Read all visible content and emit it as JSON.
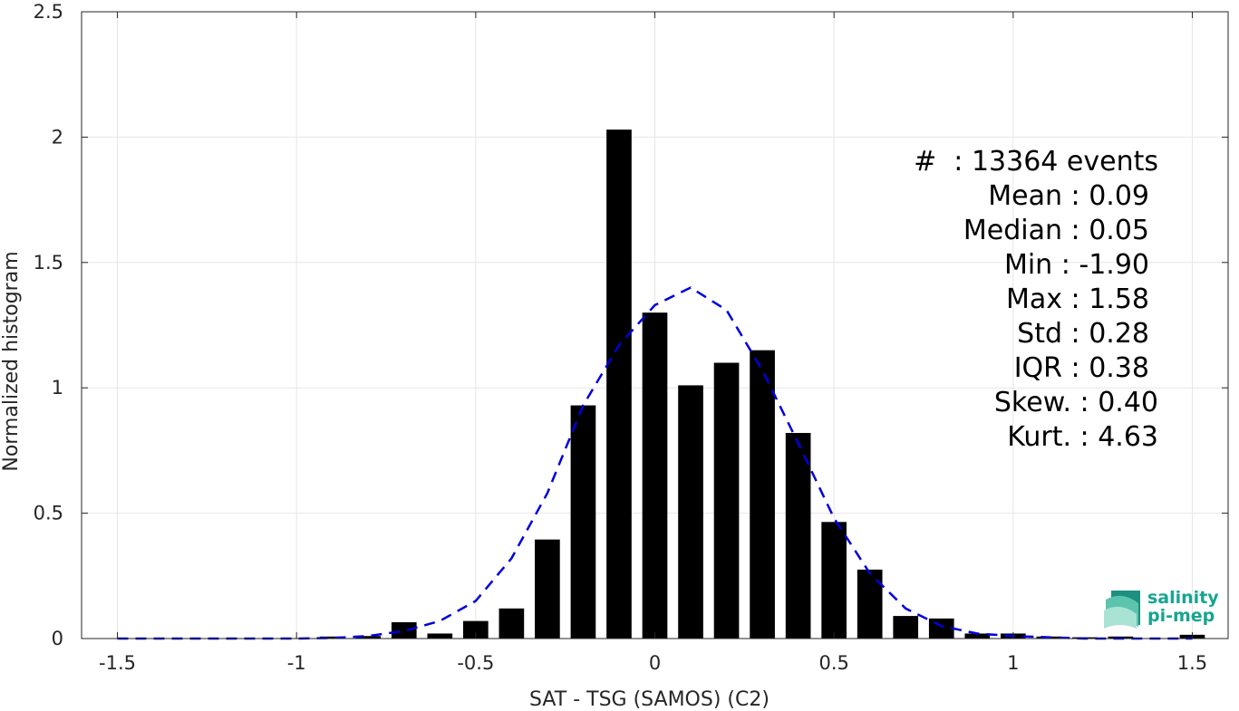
{
  "chart_data": {
    "type": "bar",
    "xlabel": "SAT - TSG (SAMOS) (C2)",
    "ylabel": "Normalized histogram",
    "xlim": [
      -1.6,
      1.6
    ],
    "ylim": [
      0,
      2.5
    ],
    "xticks": [
      -1.5,
      -1,
      -0.5,
      0,
      0.5,
      1,
      1.5
    ],
    "xtick_labels": [
      "-1.5",
      "-1",
      "-0.5",
      "0",
      "0.5",
      "1",
      "1.5"
    ],
    "yticks": [
      0,
      0.5,
      1,
      1.5,
      2,
      2.5
    ],
    "ytick_labels": [
      "0",
      "0.5",
      "1",
      "1.5",
      "2",
      "2.5"
    ],
    "grid": true,
    "bar_width": 0.07,
    "bars": {
      "x": [
        -1.0,
        -0.9,
        -0.8,
        -0.7,
        -0.6,
        -0.5,
        -0.4,
        -0.3,
        -0.2,
        -0.1,
        0.0,
        0.1,
        0.2,
        0.3,
        0.4,
        0.5,
        0.6,
        0.7,
        0.8,
        0.9,
        1.0,
        1.1,
        1.2,
        1.3,
        1.5
      ],
      "values": [
        0.002,
        0.008,
        0.01,
        0.065,
        0.02,
        0.07,
        0.12,
        0.395,
        0.93,
        2.03,
        1.3,
        1.01,
        1.1,
        1.15,
        0.82,
        0.465,
        0.275,
        0.09,
        0.08,
        0.02,
        0.02,
        0.008,
        0.005,
        0.008,
        0.015
      ],
      "color": "#000000"
    },
    "fit": {
      "style": "dashed",
      "color": "#0000dd",
      "x": [
        -1.5,
        -1.4,
        -1.3,
        -1.2,
        -1.1,
        -1.0,
        -0.9,
        -0.8,
        -0.7,
        -0.6,
        -0.5,
        -0.4,
        -0.3,
        -0.2,
        -0.1,
        0.0,
        0.1,
        0.2,
        0.3,
        0.4,
        0.5,
        0.6,
        0.7,
        0.8,
        0.9,
        1.0,
        1.1,
        1.2,
        1.3,
        1.4,
        1.5
      ],
      "y": [
        0.0,
        0.0,
        0.0,
        0.0,
        0.0,
        0.0,
        0.002,
        0.01,
        0.03,
        0.07,
        0.15,
        0.32,
        0.58,
        0.93,
        1.17,
        1.33,
        1.4,
        1.31,
        1.07,
        0.78,
        0.48,
        0.26,
        0.12,
        0.05,
        0.02,
        0.01,
        0.005,
        0.0,
        0.0,
        0.0,
        0.0
      ]
    },
    "stats": [
      "#  : 13364 events",
      "Mean : 0.09",
      "Median : 0.05",
      "Min : -1.90",
      "Max : 1.58",
      "Std : 0.28",
      "IQR : 0.38",
      "Skew. : 0.40",
      "Kurt. : 4.63"
    ]
  },
  "logo": {
    "line1": "salinity",
    "line2": "pi-mep",
    "color": "#17a58f"
  }
}
